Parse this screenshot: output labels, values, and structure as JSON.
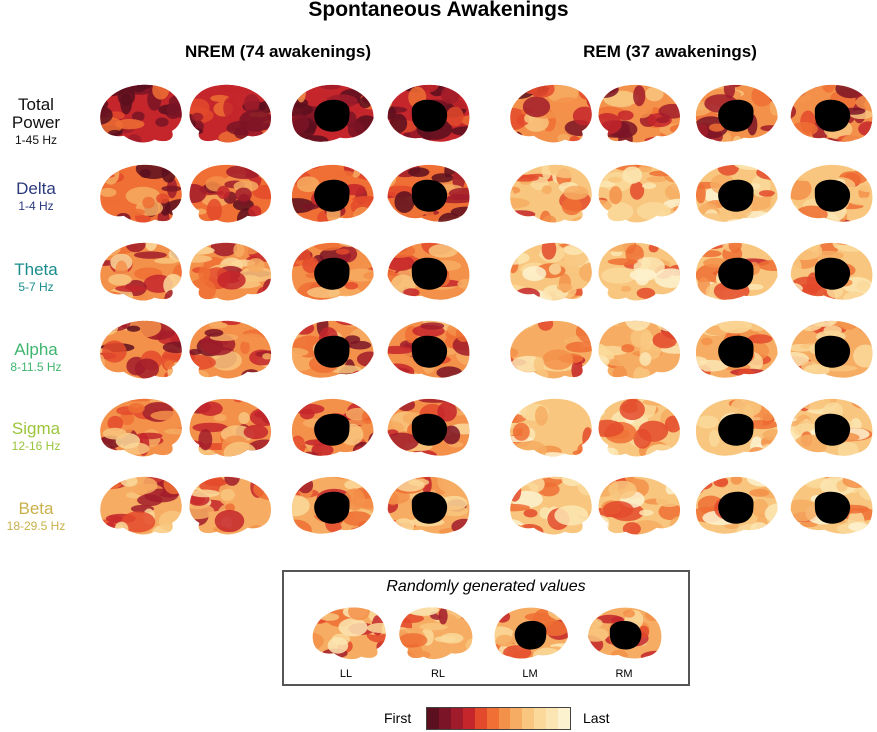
{
  "title": "Spontaneous Awakenings",
  "groups": [
    {
      "label": "NREM (74 awakenings)"
    },
    {
      "label": "REM (37 awakenings)"
    }
  ],
  "rows": [
    {
      "name": "Total Power",
      "freq": "1-45 Hz",
      "color": "#111111"
    },
    {
      "name": "Delta",
      "freq": "1-4 Hz",
      "color": "#2b3a7c"
    },
    {
      "name": "Theta",
      "freq": "5-7 Hz",
      "color": "#1a8c8c"
    },
    {
      "name": "Alpha",
      "freq": "8-11.5 Hz",
      "color": "#3fb56f"
    },
    {
      "name": "Sigma",
      "freq": "12-16 Hz",
      "color": "#9bc43a"
    },
    {
      "name": "Beta",
      "freq": "18-29.5 Hz",
      "color": "#c9b04a"
    }
  ],
  "random": {
    "title": "Randomly generated values",
    "views": [
      "LL",
      "RL",
      "LM",
      "RM"
    ]
  },
  "colorbar": {
    "min_label": "First",
    "max_label": "Last",
    "colors": [
      "#5c0f1e",
      "#7a1426",
      "#a11c2a",
      "#c4262c",
      "#e34a2b",
      "#ef6f34",
      "#f3904a",
      "#f6ad63",
      "#f8c67e",
      "#fad99a",
      "#fbe6b3",
      "#fdf2cf"
    ]
  }
}
